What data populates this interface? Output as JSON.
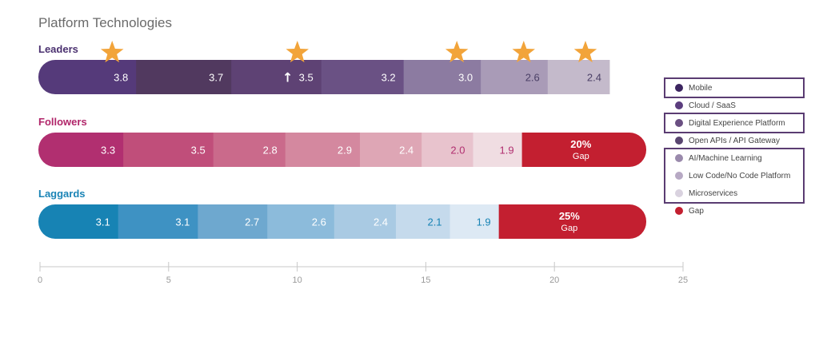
{
  "title": "Platform Technologies",
  "chart_data": {
    "type": "bar",
    "orientation": "horizontal-stacked",
    "xlim": [
      0,
      25
    ],
    "xticks": [
      "0",
      "5",
      "10",
      "15",
      "20",
      "25"
    ],
    "categories": [
      "Leaders",
      "Followers",
      "Laggards"
    ],
    "series": [
      {
        "name": "Mobile",
        "values": [
          3.8,
          3.3,
          3.1
        ]
      },
      {
        "name": "Cloud / SaaS",
        "values": [
          3.7,
          3.5,
          3.1
        ]
      },
      {
        "name": "Digital Experience Platform",
        "values": [
          3.5,
          2.8,
          2.7
        ]
      },
      {
        "name": "Open APIs / API Gateway",
        "values": [
          3.2,
          2.9,
          2.6
        ]
      },
      {
        "name": "AI/Machine Learning",
        "values": [
          3.0,
          2.4,
          2.4
        ]
      },
      {
        "name": "Low Code/No Code Platform",
        "values": [
          2.6,
          2.0,
          2.1
        ]
      },
      {
        "name": "Microservices",
        "values": [
          2.4,
          1.9,
          1.9
        ]
      }
    ],
    "gap": [
      {
        "category": "Followers",
        "label": "20%",
        "sublabel": "Gap"
      },
      {
        "category": "Laggards",
        "label": "25%",
        "sublabel": "Gap"
      }
    ],
    "row_colors": {
      "Leaders": [
        "#553a7a",
        "#51395f",
        "#5e4274",
        "#6a5184",
        "#8c7ba1",
        "#a99bb7",
        "#c4bacb"
      ],
      "Followers": [
        "#b12f70",
        "#c04e7a",
        "#ca6a8b",
        "#d4889f",
        "#dea6b5",
        "#e8c3cd",
        "#f0dde2"
      ],
      "Laggards": [
        "#1783b4",
        "#3e92c3",
        "#6ea8cf",
        "#8cbbdb",
        "#a9cae3",
        "#c5daec",
        "#dde9f4"
      ]
    },
    "gap_color": "#c31f30",
    "label_colors": {
      "Leaders": [
        "#ffffff",
        "#ffffff",
        "#ffffff",
        "#ffffff",
        "#ffffff",
        "#4a3f66",
        "#4a3f66"
      ],
      "Followers": [
        "#ffffff",
        "#ffffff",
        "#ffffff",
        "#ffffff",
        "#ffffff",
        "#b12f70",
        "#b12f70"
      ],
      "Laggards": [
        "#ffffff",
        "#ffffff",
        "#ffffff",
        "#ffffff",
        "#ffffff",
        "#1783b4",
        "#1783b4"
      ]
    },
    "category_colors": {
      "Leaders": "#4b3170",
      "Followers": "#b1266a",
      "Laggards": "#1a84b6"
    },
    "stars": {
      "category": "Leaders",
      "segment_indices": [
        0,
        2,
        4,
        5,
        6
      ],
      "color": "#f2a43a"
    },
    "arrow": {
      "category": "Leaders",
      "segment_index": 2,
      "symbol": "↑"
    },
    "legend": [
      {
        "label": "Mobile",
        "color": "#3c2560"
      },
      {
        "label": "Cloud / SaaS",
        "color": "#5b3d7e"
      },
      {
        "label": "Digital Experience Platform",
        "color": "#6a4f82"
      },
      {
        "label": "Open APIs / API Gateway",
        "color": "#594570"
      },
      {
        "label": "AI/Machine Learning",
        "color": "#9a8aac"
      },
      {
        "label": "Low Code/No Code Platform",
        "color": "#b7a9c4"
      },
      {
        "label": "Microservices",
        "color": "#d9d2df"
      },
      {
        "label": "Gap",
        "color": "#c31f30"
      }
    ]
  }
}
